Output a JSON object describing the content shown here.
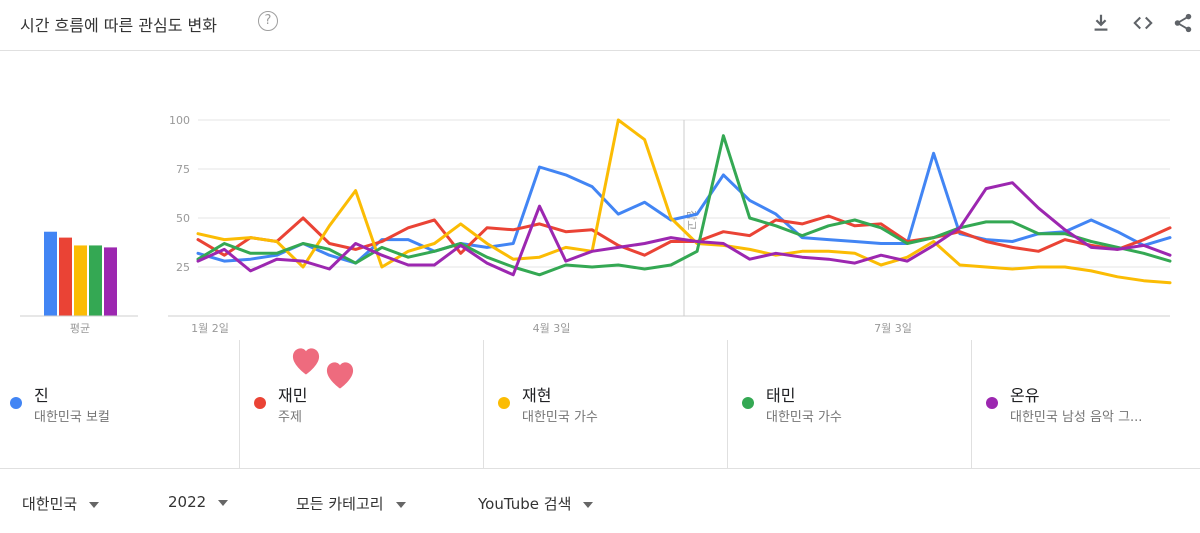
{
  "header": {
    "title": "시간 흐름에 따른 관심도 변화",
    "help_icon": "question-circle-icon",
    "actions": [
      "download-icon",
      "embed-code-icon",
      "share-icon"
    ]
  },
  "chart_data": {
    "type": "line",
    "ylim": [
      0,
      100
    ],
    "y_ticks": [
      "100",
      "75",
      "50",
      "25"
    ],
    "x_tick_labels": [
      "1월 2일",
      "4월 3일",
      "7월 3일"
    ],
    "x_tick_indices": [
      0,
      13,
      26
    ],
    "x_count": 38,
    "annotation_index": 18.5,
    "annotation_label": "참고",
    "average_label": "평균",
    "series": [
      {
        "name": "진",
        "color": "#4285f4",
        "average": 43,
        "values": [
          32,
          28,
          29,
          31,
          37,
          31,
          27,
          39,
          39,
          33,
          37,
          35,
          37,
          76,
          72,
          66,
          52,
          58,
          49,
          52,
          72,
          59,
          52,
          40,
          39,
          38,
          37,
          37,
          83,
          42,
          39,
          38,
          42,
          43,
          49,
          43,
          36,
          40
        ]
      },
      {
        "name": "재민",
        "color": "#ea4335",
        "average": 40,
        "values": [
          39,
          31,
          40,
          38,
          50,
          37,
          34,
          38,
          45,
          49,
          32,
          45,
          44,
          47,
          43,
          44,
          36,
          31,
          38,
          38,
          43,
          41,
          49,
          47,
          51,
          46,
          47,
          38,
          40,
          43,
          38,
          35,
          33,
          39,
          36,
          34,
          39,
          45
        ]
      },
      {
        "name": "재현",
        "color": "#fbbc04",
        "average": 36,
        "values": [
          42,
          39,
          40,
          38,
          25,
          46,
          64,
          25,
          33,
          37,
          47,
          37,
          29,
          30,
          35,
          33,
          100,
          90,
          50,
          37,
          36,
          34,
          31,
          33,
          33,
          32,
          26,
          30,
          38,
          26,
          25,
          24,
          25,
          25,
          23,
          20,
          18,
          17
        ]
      },
      {
        "name": "태민",
        "color": "#34a853",
        "average": 36,
        "values": [
          29,
          37,
          32,
          32,
          37,
          34,
          27,
          35,
          30,
          33,
          37,
          30,
          25,
          21,
          26,
          25,
          26,
          24,
          26,
          33,
          92,
          50,
          46,
          41,
          46,
          49,
          45,
          37,
          40,
          45,
          48,
          48,
          42,
          42,
          38,
          35,
          32,
          28
        ]
      },
      {
        "name": "온유",
        "color": "#9c27b0",
        "average": 35,
        "values": [
          28,
          34,
          23,
          29,
          28,
          24,
          37,
          31,
          26,
          26,
          36,
          27,
          21,
          56,
          28,
          33,
          35,
          37,
          40,
          38,
          37,
          29,
          32,
          30,
          29,
          27,
          31,
          28,
          36,
          45,
          65,
          68,
          55,
          44,
          35,
          34,
          36,
          31
        ]
      }
    ]
  },
  "legend": [
    {
      "name": "진",
      "subtitle": "대한민국 보컬",
      "color": "#4285f4"
    },
    {
      "name": "재민",
      "subtitle": "주제",
      "color": "#ea4335"
    },
    {
      "name": "재현",
      "subtitle": "대한민국 가수",
      "color": "#fbbc04"
    },
    {
      "name": "태민",
      "subtitle": "대한민국 가수",
      "color": "#34a853"
    },
    {
      "name": "온유",
      "subtitle": "대한민국 남성 음악 그...",
      "color": "#9c27b0"
    }
  ],
  "filters": {
    "region": "대한민국",
    "year": "2022",
    "category": "모든 카테고리",
    "search_type": "YouTube 검색"
  }
}
